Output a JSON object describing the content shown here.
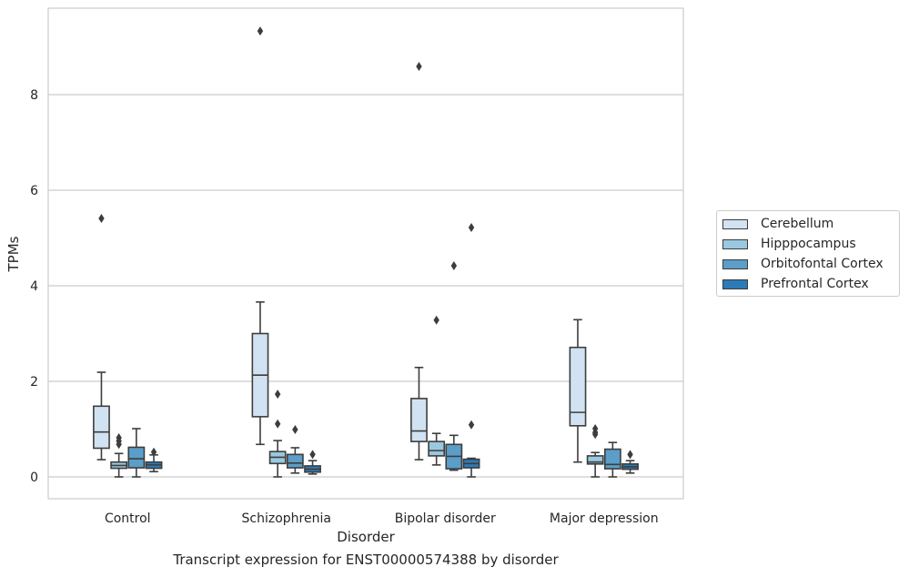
{
  "chart_data": {
    "type": "box",
    "title": "Transcript expression for ENST00000574388 by disorder",
    "xlabel": "Disorder",
    "ylabel": "TPMs",
    "ylim": [
      -0.45,
      9.8
    ],
    "yticks": [
      "0",
      "2",
      "4",
      "6",
      "8"
    ],
    "categories": [
      "Control",
      "Schizophrenia",
      "Bipolar disorder",
      "Major depression"
    ],
    "grid": "horizontal",
    "legend_position": "right",
    "series": [
      {
        "name": "Cerebellum",
        "color": "#d1e2f2",
        "boxes": [
          {
            "whislo": 0.36,
            "q1": 0.6,
            "med": 0.94,
            "q3": 1.48,
            "whishi": 2.19,
            "fliers": [
              5.41
            ]
          },
          {
            "whislo": 0.68,
            "q1": 1.26,
            "med": 2.13,
            "q3": 3.0,
            "whishi": 3.66,
            "fliers": [
              9.33
            ]
          },
          {
            "whislo": 0.36,
            "q1": 0.74,
            "med": 0.96,
            "q3": 1.64,
            "whishi": 2.29,
            "fliers": [
              8.59
            ]
          },
          {
            "whislo": 0.31,
            "q1": 1.07,
            "med": 1.35,
            "q3": 2.71,
            "whishi": 3.29,
            "fliers": []
          }
        ]
      },
      {
        "name": "Hipppocampus",
        "color": "#9ac8e0",
        "boxes": [
          {
            "whislo": 0.0,
            "q1": 0.18,
            "med": 0.24,
            "q3": 0.31,
            "whishi": 0.49,
            "fliers": [
              0.82,
              0.75,
              0.68
            ]
          },
          {
            "whislo": 0.0,
            "q1": 0.28,
            "med": 0.41,
            "q3": 0.53,
            "whishi": 0.76,
            "fliers": [
              1.73,
              1.11
            ]
          },
          {
            "whislo": 0.25,
            "q1": 0.44,
            "med": 0.55,
            "q3": 0.74,
            "whishi": 0.91,
            "fliers": [
              3.28
            ]
          },
          {
            "whislo": 0.0,
            "q1": 0.27,
            "med": 0.31,
            "q3": 0.44,
            "whishi": 0.51,
            "fliers": [
              1.01,
              0.93,
              0.89
            ]
          }
        ]
      },
      {
        "name": "Orbitofontal Cortex",
        "color": "#5a9ec9",
        "boxes": [
          {
            "whislo": 0.0,
            "q1": 0.19,
            "med": 0.38,
            "q3": 0.62,
            "whishi": 1.01,
            "fliers": []
          },
          {
            "whislo": 0.08,
            "q1": 0.19,
            "med": 0.29,
            "q3": 0.47,
            "whishi": 0.61,
            "fliers": [
              0.99
            ]
          },
          {
            "whislo": 0.14,
            "q1": 0.17,
            "med": 0.43,
            "q3": 0.68,
            "whishi": 0.87,
            "fliers": [
              4.42
            ]
          },
          {
            "whislo": 0.0,
            "q1": 0.17,
            "med": 0.26,
            "q3": 0.58,
            "whishi": 0.72,
            "fliers": []
          }
        ]
      },
      {
        "name": "Prefrontal Cortex",
        "color": "#2c7bb6",
        "boxes": [
          {
            "whislo": 0.11,
            "q1": 0.18,
            "med": 0.25,
            "q3": 0.31,
            "whishi": 0.46,
            "fliers": [
              0.52
            ]
          },
          {
            "whislo": 0.06,
            "q1": 0.1,
            "med": 0.16,
            "q3": 0.23,
            "whishi": 0.34,
            "fliers": [
              0.47
            ]
          },
          {
            "whislo": 0.0,
            "q1": 0.19,
            "med": 0.28,
            "q3": 0.37,
            "whishi": 0.39,
            "fliers": [
              5.22,
              1.09
            ]
          },
          {
            "whislo": 0.08,
            "q1": 0.16,
            "med": 0.21,
            "q3": 0.27,
            "whishi": 0.34,
            "fliers": [
              0.47
            ]
          }
        ]
      }
    ]
  }
}
